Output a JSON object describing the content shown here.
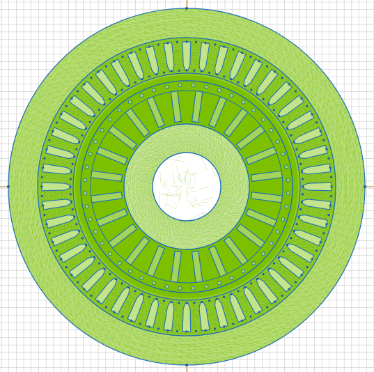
{
  "colors": {
    "background": "#ffffff",
    "grid": "#c9c9c9",
    "mesh_fill": "#86c800",
    "mesh_line": "#a6d450",
    "mesh_sparse": "#c4e28f",
    "iron": "#7cc000",
    "boundary": "#1f6fb8",
    "node": "#1e5fa6",
    "axis": "#b87b2a"
  },
  "icons": [
    "fem-mesh-view",
    "axis-crosshair"
  ],
  "geometry": {
    "stator_slots": 48,
    "rotor_spokes": 24
  }
}
